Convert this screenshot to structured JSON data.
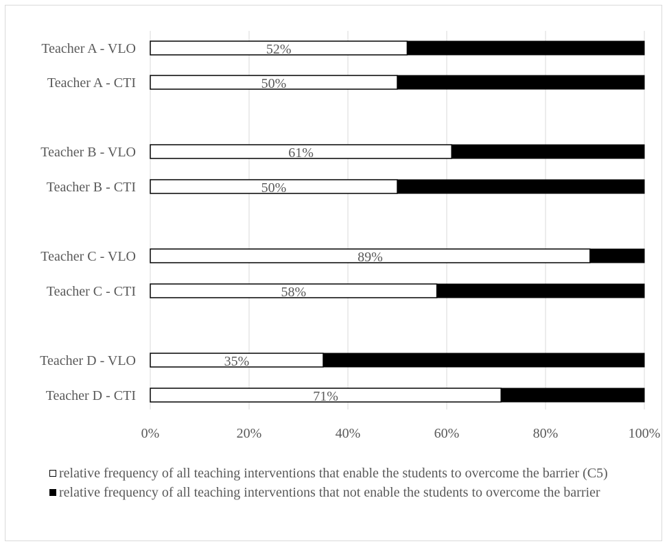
{
  "chart_data": {
    "type": "bar",
    "orientation": "horizontal",
    "stacked": "100%",
    "categories": [
      "Teacher A - VLO",
      "Teacher A - CTI",
      "Teacher B - VLO",
      "Teacher B - CTI",
      "Teacher C - VLO",
      "Teacher C - CTI",
      "Teacher D - VLO",
      "Teacher D - CTI"
    ],
    "groups": [
      [
        0,
        1
      ],
      [
        2,
        3
      ],
      [
        4,
        5
      ],
      [
        6,
        7
      ]
    ],
    "series": [
      {
        "name": "relative frequency of all teaching interventions that enable the students to overcome the barrier (C5)",
        "color": "#ffffff",
        "values": [
          52,
          50,
          61,
          50,
          89,
          58,
          35,
          71
        ],
        "labels": [
          "52%",
          "50%",
          "61%",
          "50%",
          "89%",
          "58%",
          "35%",
          "71%"
        ]
      },
      {
        "name": "relative frequency of all teaching interventions that not enable the students to overcome the barrier",
        "color": "#000000",
        "values": [
          48,
          50,
          39,
          50,
          11,
          42,
          65,
          29
        ]
      }
    ],
    "xlim": [
      0,
      100
    ],
    "xticks": [
      "0%",
      "20%",
      "40%",
      "60%",
      "80%",
      "100%"
    ],
    "grid": true,
    "legend_position": "bottom"
  }
}
